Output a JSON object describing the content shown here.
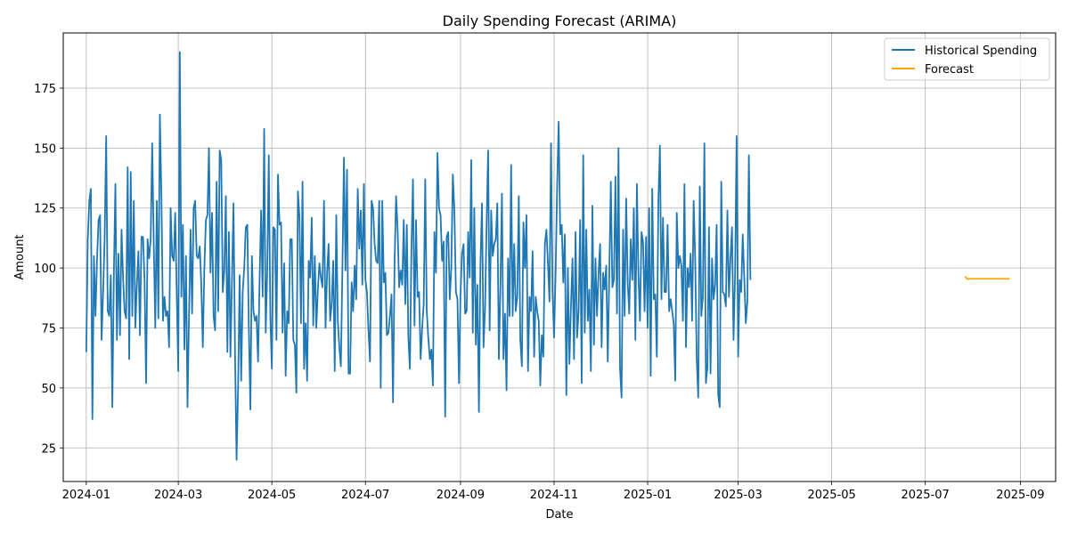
{
  "chart_data": {
    "type": "line",
    "title": "Daily Spending Forecast (ARIMA)",
    "xlabel": "Date",
    "ylabel": "Amount",
    "x_axis_type": "date",
    "xlim": [
      "2023-12-17",
      "2025-09-24"
    ],
    "ylim": [
      11,
      198
    ],
    "x_ticks": [
      "2024-01-01",
      "2024-03-01",
      "2024-05-01",
      "2024-07-01",
      "2024-09-01",
      "2024-11-01",
      "2025-01-01",
      "2025-03-01",
      "2025-05-01",
      "2025-07-01",
      "2025-09-01"
    ],
    "x_tick_labels": [
      "2024-01",
      "2024-03",
      "2024-05",
      "2024-07",
      "2024-09",
      "2024-11",
      "2025-01",
      "2025-03",
      "2025-05",
      "2025-07",
      "2025-09"
    ],
    "y_ticks": [
      25,
      50,
      75,
      100,
      125,
      150,
      175
    ],
    "y_tick_labels": [
      "25",
      "50",
      "75",
      "100",
      "125",
      "150",
      "175"
    ],
    "grid": true,
    "legend_position": "top-right",
    "series": [
      {
        "name": "Historical Spending",
        "color": "#1f77b4",
        "start_date": "2024-01-01",
        "step_days": 1,
        "values": [
          65,
          112,
          128,
          133,
          37,
          105,
          80,
          103,
          120,
          122,
          70,
          90,
          113,
          155,
          82,
          80,
          97,
          42,
          98,
          135,
          70,
          106,
          72,
          116,
          96,
          82,
          79,
          142,
          62,
          140,
          80,
          128,
          75,
          93,
          107,
          72,
          113,
          113,
          95,
          52,
          112,
          104,
          112,
          152,
          110,
          75,
          128,
          79,
          164,
          130,
          78,
          88,
          80,
          82,
          67,
          125,
          105,
          103,
          123,
          89,
          57,
          190,
          88,
          118,
          66,
          105,
          42,
          80,
          116,
          81,
          125,
          128,
          105,
          104,
          109,
          93,
          67,
          100,
          120,
          122,
          150,
          98,
          123,
          80,
          74,
          136,
          82,
          149,
          145,
          90,
          99,
          130,
          65,
          115,
          63,
          95,
          127,
          64,
          20,
          50,
          97,
          53,
          90,
          100,
          117,
          118,
          75,
          41,
          105,
          82,
          78,
          80,
          61,
          95,
          124,
          88,
          158,
          73,
          99,
          147,
          80,
          58,
          117,
          116,
          70,
          139,
          118,
          119,
          73,
          102,
          55,
          82,
          77,
          112,
          112,
          70,
          68,
          48,
          132,
          121,
          77,
          136,
          58,
          77,
          53,
          103,
          96,
          121,
          76,
          105,
          75,
          91,
          102,
          96,
          92,
          128,
          75,
          98,
          110,
          78,
          85,
          103,
          57,
          122,
          78,
          67,
          59,
          100,
          146,
          99,
          141,
          56,
          56,
          94,
          82,
          101,
          87,
          133,
          108,
          124,
          93,
          135,
          95,
          90,
          74,
          61,
          128,
          125,
          110,
          103,
          102,
          128,
          50,
          128,
          94,
          98,
          72,
          73,
          80,
          89,
          44,
          102,
          130,
          116,
          92,
          99,
          93,
          120,
          85,
          118,
          71,
          58,
          108,
          137,
          76,
          120,
          88,
          90,
          62,
          75,
          85,
          137,
          82,
          71,
          62,
          66,
          51,
          115,
          98,
          148,
          125,
          122,
          103,
          111,
          38,
          113,
          115,
          87,
          100,
          139,
          124,
          90,
          87,
          52,
          89,
          106,
          110,
          81,
          82,
          115,
          96,
          145,
          73,
          125,
          68,
          93,
          40,
          102,
          127,
          67,
          83,
          118,
          149,
          74,
          124,
          105,
          110,
          112,
          127,
          62,
          92,
          131,
          62,
          81,
          49,
          104,
          80,
          143,
          80,
          110,
          82,
          88,
          130,
          70,
          59,
          119,
          100,
          122,
          57,
          88,
          82,
          107,
          63,
          88,
          82,
          78,
          51,
          72,
          63,
          110,
          116,
          102,
          86,
          152,
          90,
          71,
          98,
          134,
          161,
          114,
          118,
          94,
          114,
          47,
          100,
          60,
          84,
          104,
          62,
          115,
          71,
          82,
          120,
          52,
          147,
          73,
          116,
          78,
          91,
          57,
          126,
          68,
          104,
          80,
          98,
          110,
          67,
          98,
          91,
          101,
          61,
          98,
          136,
          92,
          95,
          138,
          81,
          150,
          58,
          46,
          116,
          80,
          129,
          94,
          81,
          112,
          95,
          125,
          70,
          135,
          97,
          78,
          115,
          111,
          82,
          113,
          75,
          125,
          55,
          133,
          87,
          89,
          63,
          128,
          151,
          87,
          121,
          90,
          90,
          118,
          82,
          87,
          82,
          77,
          53,
          123,
          100,
          105,
          101,
          78,
          135,
          67,
          100,
          92,
          106,
          78,
          128,
          104,
          62,
          46,
          134,
          80,
          88,
          152,
          52,
          59,
          117,
          56,
          104,
          87,
          93,
          118,
          47,
          42,
          136,
          90,
          89,
          84,
          124,
          88,
          104,
          117,
          70,
          97,
          155,
          63,
          95,
          90,
          114,
          96,
          77,
          86,
          147,
          95
        ]
      },
      {
        "name": "Forecast",
        "color": "#ffa500",
        "start_date": "2025-07-27",
        "step_days": 1,
        "values": [
          96.5,
          95.6,
          95.4,
          95.5,
          95.5,
          95.5,
          95.5,
          95.5,
          95.5,
          95.5,
          95.5,
          95.5,
          95.5,
          95.5,
          95.5,
          95.5,
          95.5,
          95.5,
          95.5,
          95.5,
          95.5,
          95.5,
          95.5,
          95.5,
          95.5,
          95.5,
          95.5,
          95.5,
          95.5,
          95.5
        ]
      }
    ]
  }
}
